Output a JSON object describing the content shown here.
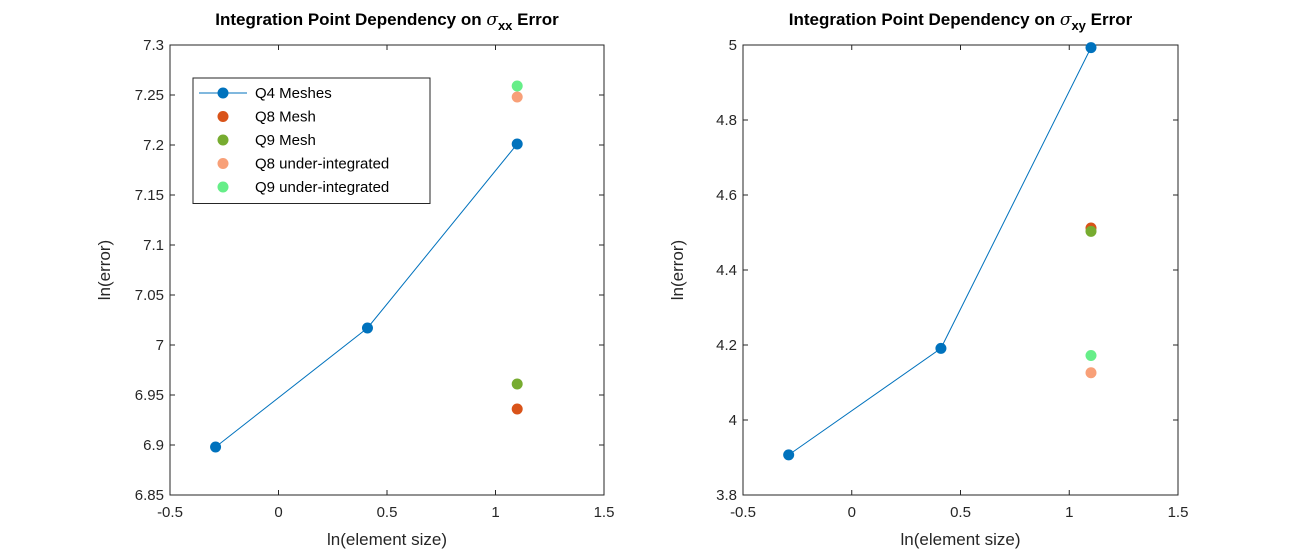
{
  "colors": {
    "q4": "#0072BD",
    "q8": "#D95319",
    "q9": "#77AC30",
    "q8_under": "#F8A078",
    "q9_under": "#66EE88",
    "axis": "#262626"
  },
  "chart_data": [
    {
      "type": "scatter",
      "title": {
        "main": "Integration Point Dependency on ",
        "symbol": "σ",
        "subscript": "xx",
        "suffix": " Error"
      },
      "xlabel": "ln(element size)",
      "ylabel": "ln(error)",
      "xlim": [
        -0.5,
        1.5
      ],
      "ylim": [
        6.85,
        7.3
      ],
      "xticks": [
        -0.5,
        0,
        0.5,
        1,
        1.5
      ],
      "xtick_labels": [
        "-0.5",
        "0",
        "0.5",
        "1",
        "1.5"
      ],
      "yticks": [
        6.85,
        6.9,
        6.95,
        7,
        7.05,
        7.1,
        7.15,
        7.2,
        7.25,
        7.3
      ],
      "ytick_labels": [
        "6.85",
        "6.9",
        "6.95",
        "7",
        "7.05",
        "7.1",
        "7.15",
        "7.2",
        "7.25",
        "7.3"
      ],
      "grid": false,
      "legend_position": "top-left",
      "series": [
        {
          "name": "Q4 Meshes",
          "color_key": "q4",
          "line": true,
          "x": [
            -0.29,
            0.41,
            1.1
          ],
          "y": [
            6.898,
            7.017,
            7.201
          ]
        },
        {
          "name": "Q8 Mesh",
          "color_key": "q8",
          "line": false,
          "x": [
            1.1
          ],
          "y": [
            6.936
          ]
        },
        {
          "name": "Q9 Mesh",
          "color_key": "q9",
          "line": false,
          "x": [
            1.1
          ],
          "y": [
            6.961
          ]
        },
        {
          "name": "Q8 under-integrated",
          "color_key": "q8_under",
          "line": false,
          "x": [
            1.1
          ],
          "y": [
            7.248
          ]
        },
        {
          "name": "Q9 under-integrated",
          "color_key": "q9_under",
          "line": false,
          "x": [
            1.1
          ],
          "y": [
            7.259
          ]
        }
      ]
    },
    {
      "type": "scatter",
      "title": {
        "main": "Integration Point Dependency on ",
        "symbol": "σ",
        "subscript": "xy",
        "suffix": " Error"
      },
      "xlabel": "ln(element size)",
      "ylabel": "ln(error)",
      "xlim": [
        -0.5,
        1.5
      ],
      "ylim": [
        3.8,
        5.0
      ],
      "xticks": [
        -0.5,
        0,
        0.5,
        1,
        1.5
      ],
      "xtick_labels": [
        "-0.5",
        "0",
        "0.5",
        "1",
        "1.5"
      ],
      "yticks": [
        3.8,
        4.0,
        4.2,
        4.4,
        4.6,
        4.8,
        5.0
      ],
      "ytick_labels": [
        "3.8",
        "4",
        "4.2",
        "4.4",
        "4.6",
        "4.8",
        "5"
      ],
      "grid": false,
      "series": [
        {
          "color_key": "q4",
          "line": true,
          "x": [
            -0.29,
            0.41,
            1.1
          ],
          "y": [
            3.907,
            4.191,
            4.993
          ]
        },
        {
          "color_key": "q8",
          "line": false,
          "x": [
            1.1
          ],
          "y": [
            4.512
          ]
        },
        {
          "color_key": "q9",
          "line": false,
          "x": [
            1.1
          ],
          "y": [
            4.503
          ]
        },
        {
          "color_key": "q8_under",
          "line": false,
          "x": [
            1.1
          ],
          "y": [
            4.126
          ]
        },
        {
          "color_key": "q9_under",
          "line": false,
          "x": [
            1.1
          ],
          "y": [
            4.172
          ]
        }
      ]
    }
  ]
}
